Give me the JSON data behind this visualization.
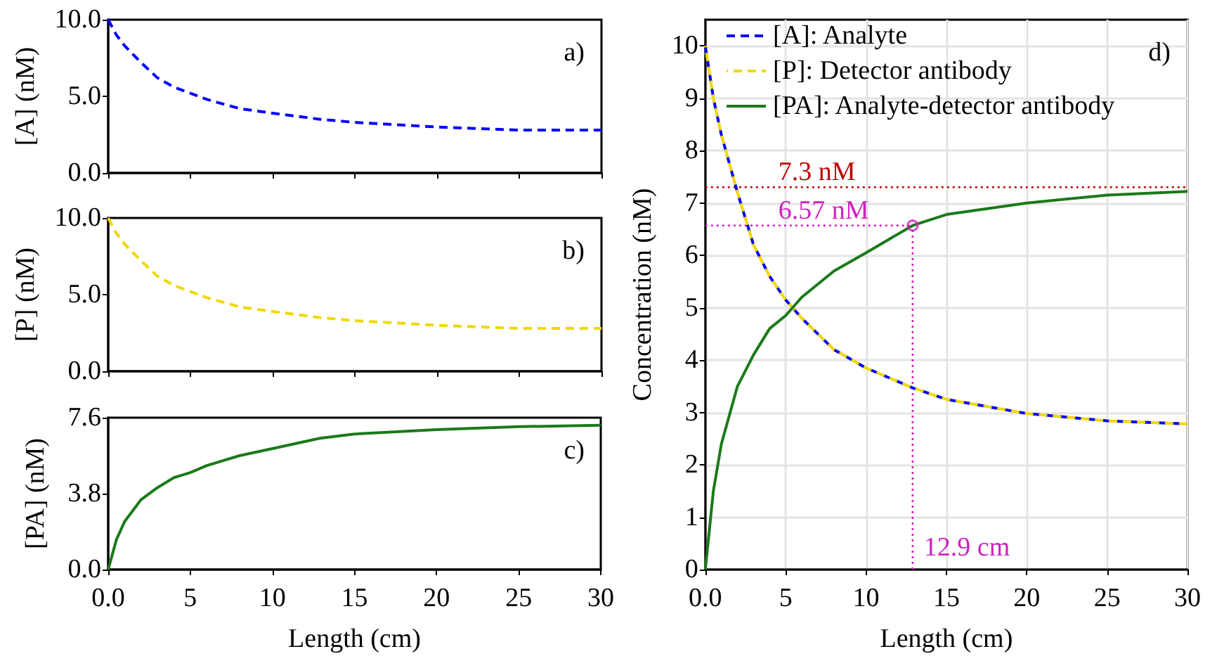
{
  "chart_data": [
    {
      "type": "line",
      "x": [
        0,
        0.5,
        1,
        2,
        3,
        4,
        5,
        6,
        8,
        10,
        12.9,
        15,
        20,
        25,
        30
      ],
      "series": [
        {
          "color": "#0000ff",
          "line_style": "dashed",
          "values": [
            10,
            9,
            8.3,
            7.2,
            6.2,
            5.6,
            5.2,
            4.8,
            4.2,
            3.9,
            3.5,
            3.3,
            3.0,
            2.8,
            2.8
          ]
        }
      ],
      "xlim": [
        0,
        30
      ],
      "xticks": [
        0,
        5,
        10,
        15,
        20,
        25,
        30
      ],
      "ylim": [
        0,
        10
      ],
      "yticks": [
        {
          "value": 0,
          "label": "0.0"
        },
        {
          "value": 5,
          "label": "5.0"
        },
        {
          "value": 10,
          "label": "10.0"
        }
      ],
      "ylabel": "[A] (nM)",
      "annotations": [
        "a)"
      ],
      "tick_labels": "y"
    },
    {
      "type": "line",
      "x": [
        0,
        0.5,
        1,
        2,
        3,
        4,
        5,
        6,
        8,
        10,
        12.9,
        15,
        20,
        25,
        30
      ],
      "series": [
        {
          "color": "#f0d800",
          "line_style": "dashed",
          "values": [
            10,
            9,
            8.3,
            7.2,
            6.2,
            5.6,
            5.2,
            4.8,
            4.2,
            3.9,
            3.5,
            3.3,
            3.0,
            2.8,
            2.8
          ]
        }
      ],
      "xlim": [
        0,
        30
      ],
      "xticks": [
        0,
        5,
        10,
        15,
        20,
        25,
        30
      ],
      "ylim": [
        0,
        10
      ],
      "yticks": [
        {
          "value": 0,
          "label": "0.0"
        },
        {
          "value": 5,
          "label": "5.0"
        },
        {
          "value": 10,
          "label": "10.0"
        }
      ],
      "ylabel": "[P] (nM)",
      "annotations": [
        "b)"
      ],
      "tick_labels": "y"
    },
    {
      "type": "line",
      "x": [
        0,
        0.5,
        1,
        2,
        3,
        4,
        5,
        6,
        8,
        10,
        12.9,
        15,
        20,
        25,
        30
      ],
      "series": [
        {
          "color": "#1a7a1a",
          "line_style": "solid",
          "values": [
            0,
            1.5,
            2.4,
            3.5,
            4.1,
            4.6,
            4.85,
            5.2,
            5.7,
            6.05,
            6.57,
            6.78,
            7.0,
            7.15,
            7.22
          ]
        }
      ],
      "xlim": [
        0,
        30
      ],
      "xticks": [
        {
          "value": 0,
          "label": "0.0"
        },
        5,
        10,
        15,
        20,
        25,
        30
      ],
      "ylim": [
        0,
        7.6
      ],
      "yticks": [
        {
          "value": 0,
          "label": "0.0"
        },
        {
          "value": 3.8,
          "label": "3.8"
        },
        {
          "value": 7.6,
          "label": "7.6"
        }
      ],
      "xlabel": "Length (cm)",
      "ylabel": "[PA] (nM)",
      "annotations": [
        "c)"
      ]
    },
    {
      "type": "line",
      "x": [
        0,
        0.5,
        1,
        2,
        3,
        4,
        5,
        6,
        8,
        10,
        12.9,
        15,
        20,
        25,
        30
      ],
      "series": [
        {
          "name": "[A]: Analyte",
          "color": "#0000ff",
          "line_style": "dashed",
          "values": [
            10,
            9,
            8.3,
            7.2,
            6.2,
            5.6,
            5.15,
            4.8,
            4.2,
            3.85,
            3.47,
            3.25,
            2.98,
            2.84,
            2.78
          ]
        },
        {
          "name": "[P]: Detector antibody",
          "color": "#f0d800",
          "line_style": "dashed",
          "values": [
            10,
            9,
            8.3,
            7.2,
            6.2,
            5.6,
            5.15,
            4.8,
            4.2,
            3.85,
            3.47,
            3.25,
            2.98,
            2.84,
            2.78
          ]
        },
        {
          "name": "[PA]: Analyte-detector antibody",
          "color": "#1a7a1a",
          "line_style": "solid",
          "values": [
            0,
            1.5,
            2.4,
            3.5,
            4.1,
            4.6,
            4.85,
            5.2,
            5.7,
            6.05,
            6.57,
            6.78,
            7.0,
            7.15,
            7.22
          ]
        },
        {
          "type": "scatter",
          "x": [
            12.9
          ],
          "color": "#d020c0",
          "marker": "circle",
          "values": [
            6.57
          ]
        }
      ],
      "xlim": [
        0,
        30
      ],
      "xticks": [
        {
          "value": 0,
          "label": "0.0"
        },
        5,
        10,
        15,
        20,
        25,
        30
      ],
      "ylim": [
        0,
        10.5
      ],
      "yticks": [
        0,
        1,
        2,
        3,
        4,
        5,
        6,
        7,
        8,
        9,
        10
      ],
      "xlabel": "Length (cm)",
      "ylabel": "Concentration (nM)",
      "annotations": [
        "d)"
      ],
      "legend": "top left",
      "grid": true,
      "ref_lines": [
        {
          "axis": "y",
          "value": 7.3,
          "label": "7.3 nM",
          "color": "#c00000",
          "line_style": "dotted"
        },
        {
          "axis": "y",
          "value": 6.57,
          "label": "6.57 nM",
          "color": "#d020c0",
          "line_style": "dotted"
        },
        {
          "axis": "x",
          "value": 12.9,
          "label": "12.9 cm",
          "color": "#d020c0",
          "line_style": "dotted"
        }
      ]
    }
  ]
}
